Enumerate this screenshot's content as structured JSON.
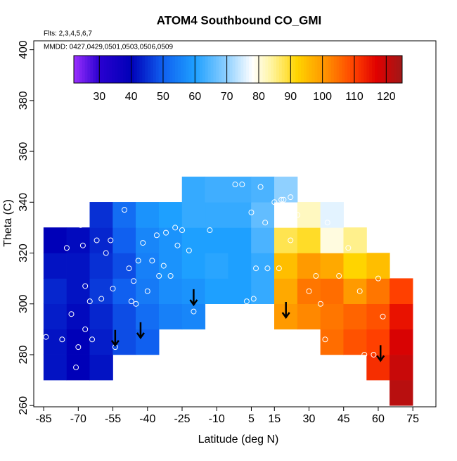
{
  "chart_data": {
    "type": "heatmap",
    "title": "ATOM4 Southbound CO_GMI",
    "annotations": [
      "Flts: 2,3,4,5,6,7",
      "MMDD: 0427,0429,0501,0503,0506,0509"
    ],
    "xlabel": "Latitude (deg N)",
    "ylabel": "Theta (C)",
    "xlim": [
      -89.3,
      85
    ],
    "ylim": [
      259.5,
      403.5
    ],
    "xticks": [
      -85,
      -70,
      -55,
      -40,
      -25,
      -10,
      5,
      15,
      30,
      45,
      60,
      75
    ],
    "yticks": [
      260,
      280,
      300,
      320,
      340,
      360,
      380,
      400
    ],
    "x": [
      -80,
      -70,
      -60,
      -50,
      -40,
      -30,
      -20,
      -10,
      0,
      10,
      20,
      30,
      40,
      50,
      60,
      70
    ],
    "y": [
      265,
      275,
      285,
      295,
      305,
      315,
      325,
      335,
      345
    ],
    "values": [
      [
        null,
        null,
        null,
        null,
        null,
        null,
        null,
        null,
        null,
        null,
        null,
        null,
        null,
        null,
        null,
        122
      ],
      [
        42,
        40,
        42,
        null,
        null,
        null,
        null,
        null,
        null,
        null,
        null,
        null,
        null,
        null,
        112,
        120
      ],
      [
        42,
        40,
        43,
        48,
        50,
        null,
        null,
        null,
        null,
        null,
        null,
        null,
        105,
        108,
        110,
        118
      ],
      [
        43,
        41,
        44,
        48,
        52,
        55,
        56,
        null,
        null,
        null,
        100,
        102,
        104,
        106,
        108,
        115
      ],
      [
        44,
        42,
        46,
        50,
        54,
        57,
        58,
        60,
        60,
        62,
        98,
        104,
        105,
        100,
        104,
        110
      ],
      [
        42,
        42,
        45,
        48,
        55,
        58,
        60,
        61,
        60,
        62,
        95,
        100,
        98,
        92,
        95,
        null
      ],
      [
        40,
        41,
        44,
        50,
        56,
        58,
        60,
        60,
        60,
        64,
        88,
        90,
        80,
        85,
        null,
        null
      ],
      [
        null,
        null,
        45,
        52,
        58,
        60,
        62,
        62,
        62,
        66,
        78,
        82,
        76,
        null,
        null,
        null
      ],
      [
        null,
        null,
        null,
        null,
        null,
        null,
        62,
        63,
        63,
        64,
        70,
        null,
        null,
        null,
        null,
        null
      ]
    ],
    "colorbar": {
      "lim": [
        22,
        125
      ],
      "ticks": [
        30,
        40,
        50,
        60,
        70,
        80,
        90,
        100,
        110,
        120
      ],
      "stops": [
        [
          22,
          "#9b30ff"
        ],
        [
          30,
          "#2a00d0"
        ],
        [
          40,
          "#0000b8"
        ],
        [
          50,
          "#1060f0"
        ],
        [
          60,
          "#1ea0ff"
        ],
        [
          70,
          "#8fd0ff"
        ],
        [
          78,
          "#ffffff"
        ],
        [
          84,
          "#fff4a0"
        ],
        [
          92,
          "#ffd400"
        ],
        [
          100,
          "#ff9a00"
        ],
        [
          110,
          "#ff4000"
        ],
        [
          117,
          "#e00000"
        ],
        [
          125,
          "#a01818"
        ]
      ]
    },
    "points": {
      "x": [
        -84,
        -77,
        -75,
        -73,
        -71,
        -70,
        -69,
        -68,
        -67,
        -67,
        -65,
        -64,
        -62,
        -60,
        -58,
        -56,
        -55,
        -54,
        -50,
        -48,
        -47,
        -46,
        -45,
        -44,
        -42,
        -40,
        -38,
        -36,
        -35,
        -33,
        -32,
        -30,
        -28,
        -27,
        -25,
        -22,
        -20,
        -13,
        -2,
        1,
        3,
        5,
        6,
        7,
        9,
        11,
        12,
        15,
        17,
        18,
        19,
        22,
        22,
        25,
        30,
        33,
        35,
        37,
        38,
        43,
        47,
        52,
        54,
        56,
        58,
        60,
        62
      ],
      "y": [
        287,
        286,
        322,
        296,
        275,
        283,
        331,
        323,
        290,
        307,
        301,
        286,
        325,
        302,
        320,
        325,
        306,
        283,
        337,
        314,
        301,
        309,
        300,
        317,
        324,
        305,
        317,
        327,
        311,
        315,
        328,
        311,
        330,
        323,
        329,
        321,
        297,
        329,
        347,
        347,
        301,
        336,
        302,
        314,
        346,
        332,
        314,
        340,
        314,
        341,
        341,
        342,
        325,
        335,
        305,
        311,
        300,
        286,
        332,
        311,
        322,
        305,
        280,
        332,
        280,
        310,
        295
      ]
    },
    "arrows": {
      "x": [
        -54,
        -43,
        -20,
        20,
        61
      ],
      "y": [
        287,
        290,
        303,
        298,
        281
      ]
    }
  }
}
